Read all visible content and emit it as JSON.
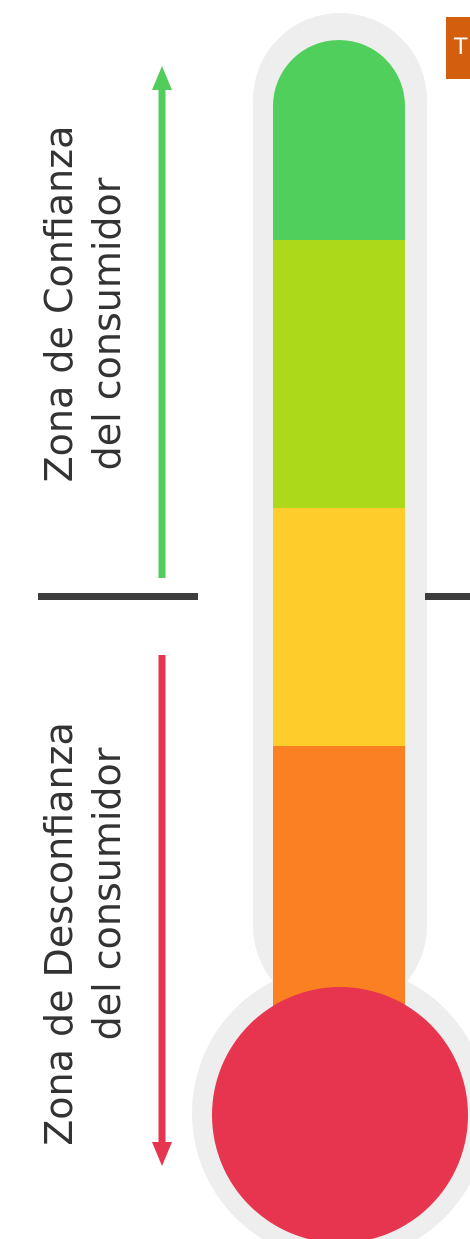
{
  "zones": {
    "confianza": {
      "line1": "Zona de Confianza",
      "line2": "del consumidor",
      "color": "#52cc5a"
    },
    "desconfianza": {
      "line1": "Zona de Desconfianza",
      "line2": "del consumidor",
      "color": "#e8354f"
    }
  },
  "divider_color": "#3d3d3d",
  "thermometer": {
    "outline_color": "#eeeeee",
    "segments": [
      {
        "name": "green",
        "color": "#50cf5c"
      },
      {
        "name": "lime",
        "color": "#acd91a"
      },
      {
        "name": "yellow",
        "color": "#ffcd2b"
      },
      {
        "name": "orange",
        "color": "#fb8022"
      },
      {
        "name": "red",
        "color": "#e8354f"
      }
    ]
  },
  "badge": {
    "text": "T",
    "color": "#d35f0e"
  }
}
